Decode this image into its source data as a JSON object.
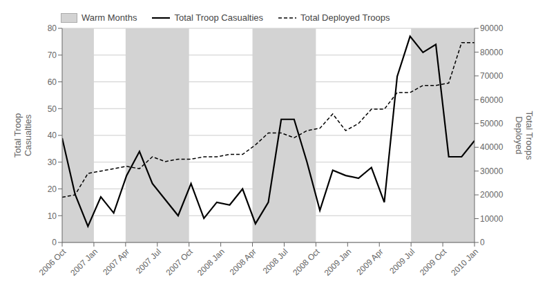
{
  "chart_data": {
    "type": "line",
    "x": [
      0,
      1.21875,
      2.4375,
      3.65625,
      4.875,
      6.09375,
      7.3125,
      8.53125,
      9.75,
      10.96875,
      12.1875,
      13.40625,
      14.625,
      15.84375,
      17.0625,
      18.28125,
      19.5,
      20.71875,
      21.9375,
      23.15625,
      24.375,
      25.59375,
      26.8125,
      28.03125,
      29.25,
      30.46875,
      31.6875,
      32.90625,
      34.125,
      35.34375,
      36.5625,
      37.78125,
      39
    ],
    "xlim": [
      0,
      39
    ],
    "xticks": [
      {
        "value": 0,
        "label": "2006 Oct"
      },
      {
        "value": 3,
        "label": "2007 Jan"
      },
      {
        "value": 6,
        "label": "2007 Apr"
      },
      {
        "value": 9,
        "label": "2007 Jul"
      },
      {
        "value": 12,
        "label": "2007 Oct"
      },
      {
        "value": 15,
        "label": "2008 Jan"
      },
      {
        "value": 18,
        "label": "2008 Apr"
      },
      {
        "value": 21,
        "label": "2008 Jul"
      },
      {
        "value": 24,
        "label": "2008 Oct"
      },
      {
        "value": 27,
        "label": "2009 Jan"
      },
      {
        "value": 30,
        "label": "2009 Apr"
      },
      {
        "value": 33,
        "label": "2009 Jul"
      },
      {
        "value": 36,
        "label": "2009 Oct"
      },
      {
        "value": 39,
        "label": "2010 Jan"
      }
    ],
    "y_label": "Total Troop\nCasualties",
    "y2_label": "Total Troops\nDeployed",
    "ylim": [
      0,
      80
    ],
    "yticks": [
      0,
      10,
      20,
      30,
      40,
      50,
      60,
      70,
      80
    ],
    "y2lim": [
      0,
      90000
    ],
    "y2ticks": [
      0,
      10000,
      20000,
      30000,
      40000,
      50000,
      60000,
      70000,
      80000,
      90000
    ],
    "grid": true,
    "legend": "upper left",
    "bands": [
      {
        "name": "Warm Months",
        "color": "#d3d3d3",
        "spans": [
          [
            0,
            3
          ],
          [
            6,
            12
          ],
          [
            18,
            24
          ],
          [
            33,
            39
          ]
        ]
      }
    ],
    "series": [
      {
        "name": "Total Troop Casualties",
        "color": "#000000",
        "line_style": "solid",
        "values": [
          39,
          18,
          6,
          17,
          11,
          25,
          34,
          22,
          16,
          10,
          22,
          9,
          15,
          14,
          20,
          7,
          15,
          46,
          46,
          30,
          12,
          27,
          25,
          24,
          28,
          15,
          62,
          77,
          71,
          74,
          32,
          32,
          38
        ]
      },
      {
        "name": "Total Deployed Troops",
        "color": "#000000",
        "line_style": "dashed",
        "axis": "y2",
        "values": [
          19000,
          20000,
          29000,
          30000,
          31000,
          32000,
          31000,
          36000,
          34000,
          35000,
          35000,
          36000,
          36000,
          37000,
          37000,
          41000,
          46000,
          46000,
          44000,
          47000,
          48000,
          54000,
          47000,
          50000,
          56000,
          56000,
          63000,
          63000,
          66000,
          66000,
          67000,
          84000,
          84000
        ]
      }
    ]
  }
}
